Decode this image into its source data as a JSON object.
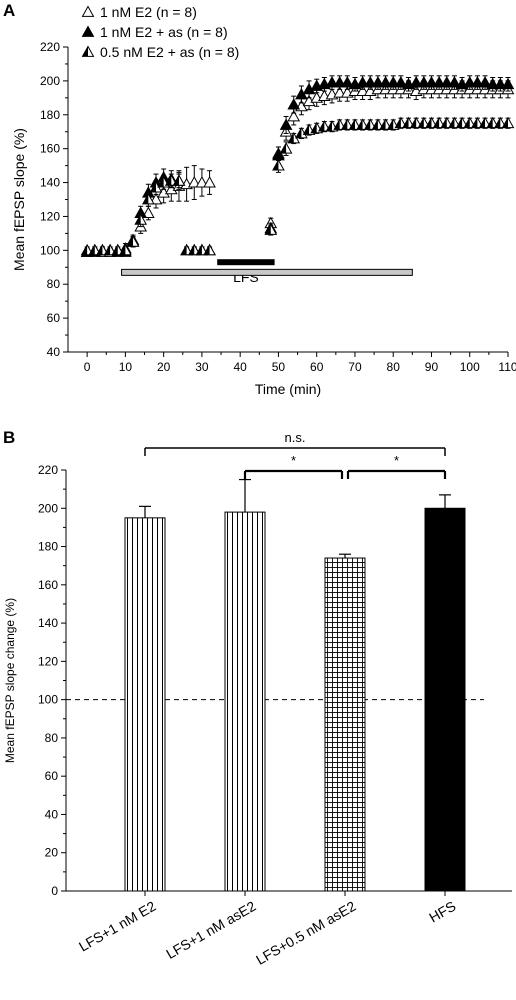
{
  "chart_data": [
    {
      "panel": "A",
      "type": "scatter",
      "xlabel": "Time (min)",
      "ylabel": "Mean fEPSP slope (%)",
      "xlim": [
        -5,
        110
      ],
      "ylim": [
        40,
        220
      ],
      "xticks": [
        0,
        10,
        20,
        30,
        40,
        50,
        60,
        70,
        80,
        90,
        100,
        110
      ],
      "yticks": [
        40,
        60,
        80,
        100,
        120,
        140,
        160,
        180,
        200,
        220
      ],
      "legend_position": "top-left",
      "annotations": [
        {
          "text": "LFS",
          "x_start": 34,
          "x_end": 49,
          "y": 93
        },
        {
          "text": "",
          "x_start": 9,
          "x_end": 85,
          "y": 87
        }
      ],
      "series": [
        {
          "name": "1 nM E2 (n = 8)",
          "marker": "open-triangle",
          "x": [
            0,
            2,
            4,
            6,
            8,
            10,
            12,
            14,
            16,
            18,
            20,
            22,
            24,
            26,
            28,
            30,
            32,
            48,
            50,
            52,
            54,
            56,
            58,
            60,
            62,
            64,
            66,
            68,
            70,
            72,
            74,
            76,
            78,
            80,
            82,
            84,
            86,
            88,
            90,
            92,
            94,
            96,
            98,
            100,
            102,
            104,
            106,
            108,
            110
          ],
          "y": [
            99,
            100,
            99,
            99,
            100,
            101,
            106,
            114,
            122,
            130,
            134,
            136,
            138,
            139,
            140,
            140,
            140,
            116,
            157,
            170,
            179,
            185,
            188,
            190,
            191,
            192,
            193,
            193,
            194,
            194,
            194,
            195,
            195,
            195,
            195,
            195,
            194,
            195,
            195,
            195,
            195,
            195,
            195,
            195,
            195,
            195,
            195,
            195,
            195
          ],
          "err": [
            2,
            2,
            2,
            2,
            2,
            3,
            3,
            4,
            4,
            5,
            6,
            7,
            9,
            10,
            10,
            8,
            7,
            3,
            4,
            5,
            5,
            5,
            5,
            5,
            5,
            5,
            5,
            5,
            5,
            5,
            5,
            5,
            5,
            5,
            5,
            5,
            5,
            5,
            5,
            5,
            5,
            5,
            5,
            5,
            5,
            5,
            5,
            5,
            5
          ]
        },
        {
          "name": "1 nM E2 + as (n = 8)",
          "marker": "filled-triangle",
          "x": [
            0,
            2,
            4,
            6,
            8,
            10,
            12,
            14,
            16,
            18,
            20,
            22,
            24,
            26,
            28,
            30,
            32,
            48,
            50,
            52,
            54,
            56,
            58,
            60,
            62,
            64,
            66,
            68,
            70,
            72,
            74,
            76,
            78,
            80,
            82,
            84,
            86,
            88,
            90,
            92,
            94,
            96,
            98,
            100,
            102,
            104,
            106,
            108,
            110
          ],
          "y": [
            99,
            99,
            100,
            100,
            99,
            99,
            105,
            122,
            134,
            140,
            143,
            142,
            141,
            100,
            100,
            100,
            100,
            113,
            156,
            174,
            186,
            192,
            195,
            197,
            198,
            199,
            199,
            199,
            198,
            199,
            199,
            199,
            199,
            199,
            199,
            198,
            199,
            199,
            199,
            199,
            199,
            199,
            198,
            199,
            199,
            199,
            198,
            198,
            198
          ],
          "err": [
            2,
            2,
            2,
            2,
            2,
            2,
            3,
            4,
            5,
            5,
            5,
            5,
            5,
            2,
            2,
            2,
            2,
            3,
            5,
            5,
            5,
            5,
            5,
            4,
            4,
            4,
            4,
            4,
            4,
            4,
            4,
            4,
            4,
            4,
            4,
            4,
            4,
            4,
            4,
            4,
            4,
            4,
            4,
            4,
            4,
            4,
            4,
            4,
            4
          ]
        },
        {
          "name": "0.5 nM E2 + as (n = 8)",
          "marker": "half-triangle",
          "x": [
            0,
            2,
            4,
            6,
            8,
            10,
            12,
            14,
            16,
            18,
            20,
            22,
            24,
            26,
            28,
            30,
            32,
            48,
            50,
            52,
            54,
            56,
            58,
            60,
            62,
            64,
            66,
            68,
            70,
            72,
            74,
            76,
            78,
            80,
            82,
            84,
            86,
            88,
            90,
            92,
            94,
            96,
            98,
            100,
            102,
            104,
            106,
            108,
            110
          ],
          "y": [
            100,
            100,
            100,
            100,
            100,
            100,
            105,
            118,
            130,
            137,
            140,
            141,
            141,
            100,
            100,
            100,
            100,
            112,
            150,
            160,
            166,
            169,
            171,
            172,
            173,
            173,
            174,
            174,
            174,
            174,
            174,
            174,
            174,
            174,
            175,
            175,
            175,
            175,
            175,
            175,
            175,
            175,
            175,
            175,
            175,
            175,
            175,
            175,
            175
          ],
          "err": [
            2,
            2,
            2,
            2,
            2,
            2,
            3,
            4,
            4,
            4,
            4,
            4,
            4,
            2,
            2,
            2,
            2,
            3,
            4,
            4,
            3,
            3,
            3,
            3,
            3,
            3,
            3,
            3,
            3,
            3,
            3,
            3,
            3,
            3,
            3,
            3,
            3,
            3,
            3,
            3,
            3,
            3,
            3,
            3,
            3,
            3,
            3,
            3,
            3
          ]
        }
      ]
    },
    {
      "panel": "B",
      "type": "bar",
      "ylabel": "Mean fEPSP slope change (%)",
      "xlabel": "",
      "ylim": [
        0,
        220
      ],
      "yticks": [
        0,
        20,
        40,
        60,
        80,
        100,
        120,
        140,
        160,
        180,
        200,
        220
      ],
      "baseline": 100,
      "categories": [
        "LFS+1 nM E2",
        "LFS+1 nM asE2",
        "LFS+0.5 nM asE2",
        "HFS"
      ],
      "values": [
        195,
        198,
        174,
        200
      ],
      "errors": [
        6,
        17,
        2,
        7
      ],
      "patterns": [
        "vertical-lines",
        "vertical-lines",
        "grid",
        "solid"
      ],
      "significance": [
        {
          "from": 0,
          "to": 3,
          "label": "n.s."
        },
        {
          "from": 1,
          "to": 2,
          "label": "*"
        },
        {
          "from": 2,
          "to": 3,
          "label": "*"
        }
      ]
    }
  ],
  "panel_labels": [
    "A",
    "B"
  ],
  "colors": {
    "ink": "#000000",
    "lfs_bar": "#000000",
    "drug_bar": "#c8c8c8",
    "background": "#ffffff"
  }
}
